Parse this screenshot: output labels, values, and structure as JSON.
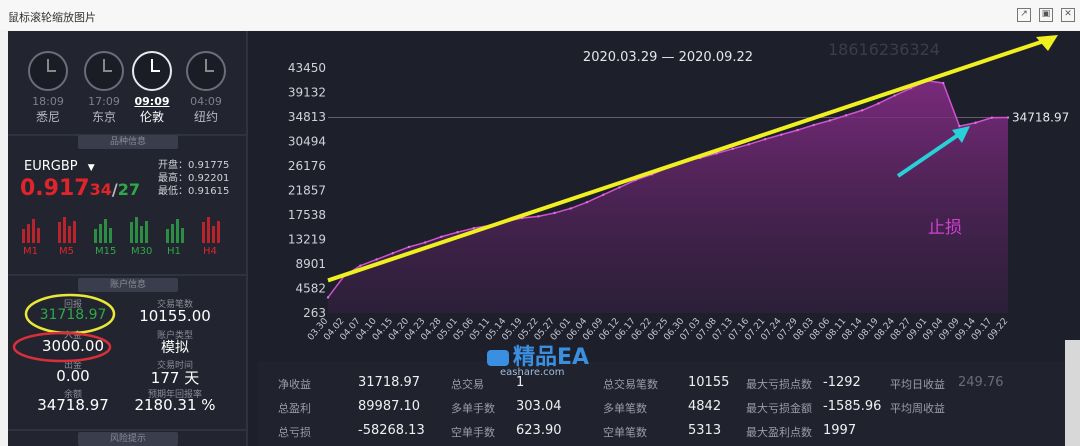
{
  "window": {
    "title": "鼠标滚轮缩放图片"
  },
  "clocks": [
    {
      "time": "18:09",
      "city": "悉尼",
      "active": false
    },
    {
      "time": "17:09",
      "city": "东京",
      "active": false
    },
    {
      "time": "09:09",
      "city": "伦敦",
      "active": true
    },
    {
      "time": "04:09",
      "city": "纽约",
      "active": false
    }
  ],
  "symbol_section": {
    "header": "品种信息",
    "symbol": "EURGBP",
    "price_main": "0.917",
    "price_frac": "34",
    "price_slash": "/",
    "price_ask": "27",
    "open": "开盘：0.91775",
    "high": "最高：0.92201",
    "low": "最低：0.91615",
    "timeframes": [
      "M1",
      "M5",
      "M15",
      "M30",
      "H1",
      "H4"
    ]
  },
  "account": {
    "header": "账户信息",
    "equity_label": "回报",
    "equity_value": "31718.97",
    "trades_label": "交易笔数",
    "trades_value": "10155.00",
    "deposit_label": "入金",
    "deposit_value": "3000.00",
    "type_label": "账户类型",
    "type_value": "模拟",
    "withdraw_label": "出金",
    "withdraw_value": "0.00",
    "time_label": "交易时间",
    "time_value": "177 天",
    "balance_label": "余额",
    "balance_value": "34718.97",
    "annual_label": "预期年回报率",
    "annual_value": "2180.31 %"
  },
  "risk": {
    "header": "风险提示"
  },
  "chart_data": {
    "type": "area",
    "title": "2020.03.29 — 2020.09.22",
    "watermark_phone": "18616236324",
    "yticks": [
      43450,
      39132,
      34813,
      30494,
      26176,
      21857,
      17538,
      13219,
      8901,
      4582,
      263
    ],
    "ylim": [
      263,
      43450
    ],
    "last_value_label": "34718.97",
    "annotation": "止损",
    "x": [
      "03.30",
      "04.02",
      "04.07",
      "04.10",
      "04.15",
      "04.20",
      "04.23",
      "04.28",
      "05.01",
      "05.06",
      "05.11",
      "05.14",
      "05.19",
      "05.22",
      "05.27",
      "06.01",
      "06.04",
      "06.09",
      "06.12",
      "06.17",
      "06.22",
      "06.25",
      "06.30",
      "07.03",
      "07.08",
      "07.13",
      "07.16",
      "07.21",
      "07.24",
      "07.29",
      "08.03",
      "08.06",
      "08.11",
      "08.14",
      "08.19",
      "08.24",
      "08.27",
      "09.01",
      "09.04",
      "09.09",
      "09.14",
      "09.17",
      "09.22"
    ],
    "values": [
      3000,
      6800,
      8600,
      9700,
      10800,
      11900,
      12700,
      13700,
      14500,
      15200,
      15700,
      16400,
      17000,
      17300,
      17900,
      18700,
      19800,
      21100,
      22400,
      23700,
      24700,
      25900,
      27000,
      27600,
      28400,
      29200,
      30000,
      30900,
      31700,
      32500,
      33400,
      34200,
      35100,
      36000,
      37200,
      38600,
      39900,
      41200,
      40800,
      33200,
      33800,
      34700,
      34718.97
    ]
  },
  "bottom_stats": [
    {
      "label": "净收益",
      "value": "31718.97"
    },
    {
      "label": "总盈利",
      "value": "89987.10"
    },
    {
      "label": "总亏损",
      "value": "-58268.13"
    },
    {
      "label": "总交易",
      "value": "1"
    },
    {
      "label": "多单手数",
      "value": "303.04"
    },
    {
      "label": "空单手数",
      "value": "623.90"
    },
    {
      "label": "总交易笔数",
      "value": "10155"
    },
    {
      "label": "多单笔数",
      "value": "4842"
    },
    {
      "label": "空单笔数",
      "value": "5313"
    },
    {
      "label": "最大亏损点数",
      "value": "-1292"
    },
    {
      "label": "最大亏损金额",
      "value": "-1585.96"
    },
    {
      "label": "最大盈利点数",
      "value": "1997"
    },
    {
      "label": "平均日收益",
      "value": "249.76"
    },
    {
      "label": "平均周收益",
      "value": ""
    }
  ],
  "watermark": {
    "brand": "精品EA",
    "site": "eashare.com"
  }
}
